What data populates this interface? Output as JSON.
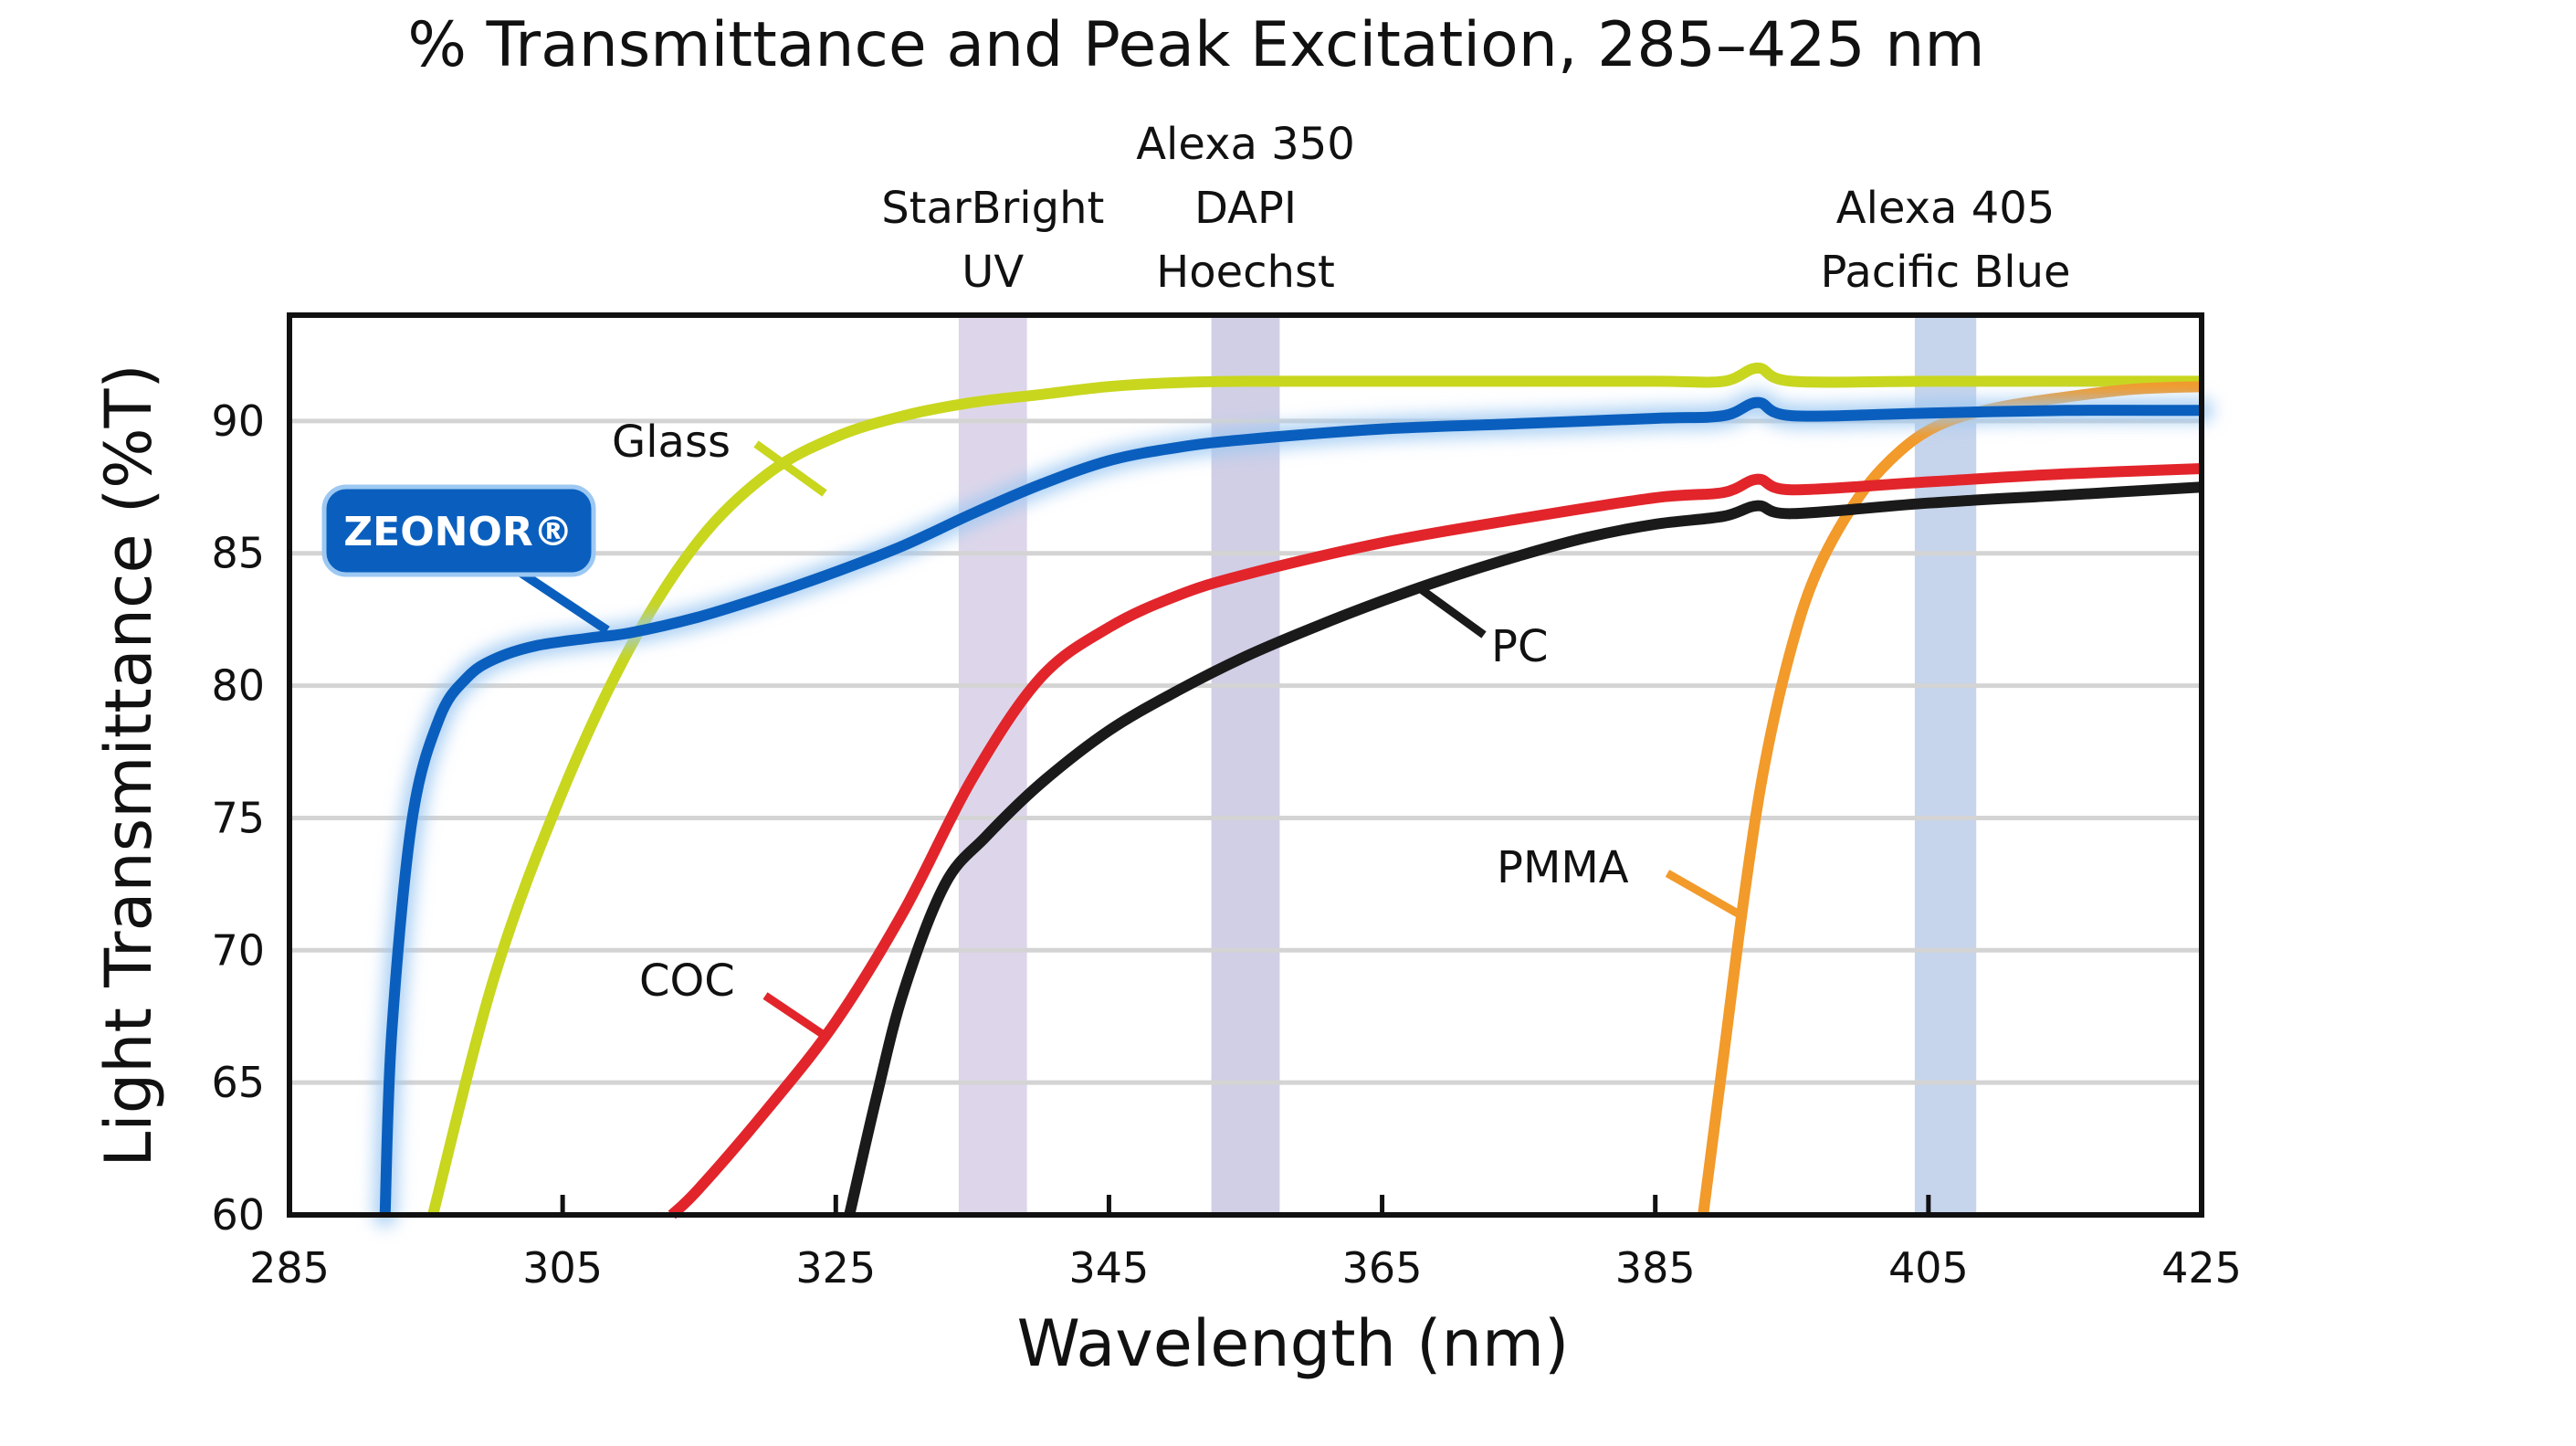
{
  "chart_data": {
    "type": "line",
    "title": "% Transmittance and Peak Excitation, 285–425 nm",
    "xlabel": "Wavelength (nm)",
    "ylabel": "Light Transmittance (%T)",
    "xlim": [
      285,
      425
    ],
    "ylim": [
      60,
      94
    ],
    "grid": true,
    "x_ticks": [
      285,
      305,
      325,
      345,
      365,
      385,
      405,
      425
    ],
    "y_ticks": [
      60,
      65,
      70,
      75,
      80,
      85,
      90
    ],
    "x_tick_labels": [
      "285",
      "305",
      "325",
      "345",
      "365",
      "385",
      "405",
      "425"
    ],
    "y_tick_labels": [
      "60",
      "65",
      "70",
      "75",
      "80",
      "85",
      "90"
    ],
    "excitation_bands": [
      {
        "lines": [
          "StarBright",
          "UV"
        ],
        "from": 334,
        "to": 339,
        "color": "#ddd6ea"
      },
      {
        "lines": [
          "Alexa 350",
          "DAPI",
          "Hoechst"
        ],
        "from": 352.5,
        "to": 357.5,
        "color": "#d0cfe6"
      },
      {
        "lines": [
          "Alexa 405",
          "Pacific Blue"
        ],
        "from": 404,
        "to": 408.5,
        "color": "#c6d4ec"
      }
    ],
    "series": [
      {
        "name": "Glass",
        "color": "#c8d61e",
        "x": [
          295.5,
          300,
          305,
          310,
          315,
          320,
          325,
          330,
          335,
          340,
          345,
          350,
          355,
          365,
          375,
          385,
          390,
          392.5,
          395,
          405,
          415,
          425
        ],
        "y": [
          60,
          69,
          76,
          81.5,
          85.5,
          88.0,
          89.4,
          90.2,
          90.7,
          91.0,
          91.3,
          91.45,
          91.5,
          91.5,
          91.5,
          91.5,
          91.5,
          92.0,
          91.5,
          91.5,
          91.5,
          91.5
        ]
      },
      {
        "name": "ZEONOR®",
        "color": "#0a5fbe",
        "x": [
          292,
          292.5,
          294,
          296,
          298,
          300,
          303,
          307,
          310,
          315,
          320,
          325,
          330,
          335,
          340,
          345,
          350,
          355,
          365,
          375,
          385,
          390,
          392.5,
          395,
          405,
          415,
          425
        ],
        "y": [
          60,
          67,
          75,
          78.8,
          80.3,
          81.0,
          81.5,
          81.8,
          82.0,
          82.6,
          83.4,
          84.3,
          85.3,
          86.5,
          87.6,
          88.5,
          89.0,
          89.3,
          89.7,
          89.9,
          90.1,
          90.2,
          90.7,
          90.2,
          90.3,
          90.4,
          90.4
        ]
      },
      {
        "name": "COC",
        "color": "#e2252b",
        "x": [
          313,
          315,
          320,
          325,
          330,
          335,
          340,
          345,
          350,
          355,
          365,
          375,
          385,
          390,
          392.5,
          395,
          405,
          415,
          425
        ],
        "y": [
          60,
          61,
          64,
          67.3,
          71.5,
          76.5,
          80.3,
          82.2,
          83.4,
          84.2,
          85.4,
          86.3,
          87.1,
          87.3,
          87.8,
          87.4,
          87.7,
          88.0,
          88.2
        ]
      },
      {
        "name": "PC",
        "color": "#1a1a1a",
        "x": [
          326,
          328,
          330,
          333,
          336,
          340,
          345,
          350,
          355,
          360,
          365,
          370,
          375,
          380,
          385,
          390,
          392.5,
          395,
          405,
          415,
          425
        ],
        "y": [
          60,
          64.5,
          68.5,
          72.5,
          74.3,
          76.3,
          78.3,
          79.8,
          81.1,
          82.2,
          83.2,
          84.1,
          84.9,
          85.6,
          86.1,
          86.4,
          86.8,
          86.5,
          86.9,
          87.2,
          87.5
        ]
      },
      {
        "name": "PMMA",
        "color": "#f29a2a",
        "x": [
          388.5,
          390,
          391.5,
          393,
          395,
          397,
          400,
          403,
          406,
          410,
          415,
          420,
          425
        ],
        "y": [
          60,
          66,
          72,
          77,
          81.5,
          84.5,
          87.2,
          88.9,
          89.9,
          90.5,
          90.9,
          91.2,
          91.3
        ]
      }
    ]
  }
}
